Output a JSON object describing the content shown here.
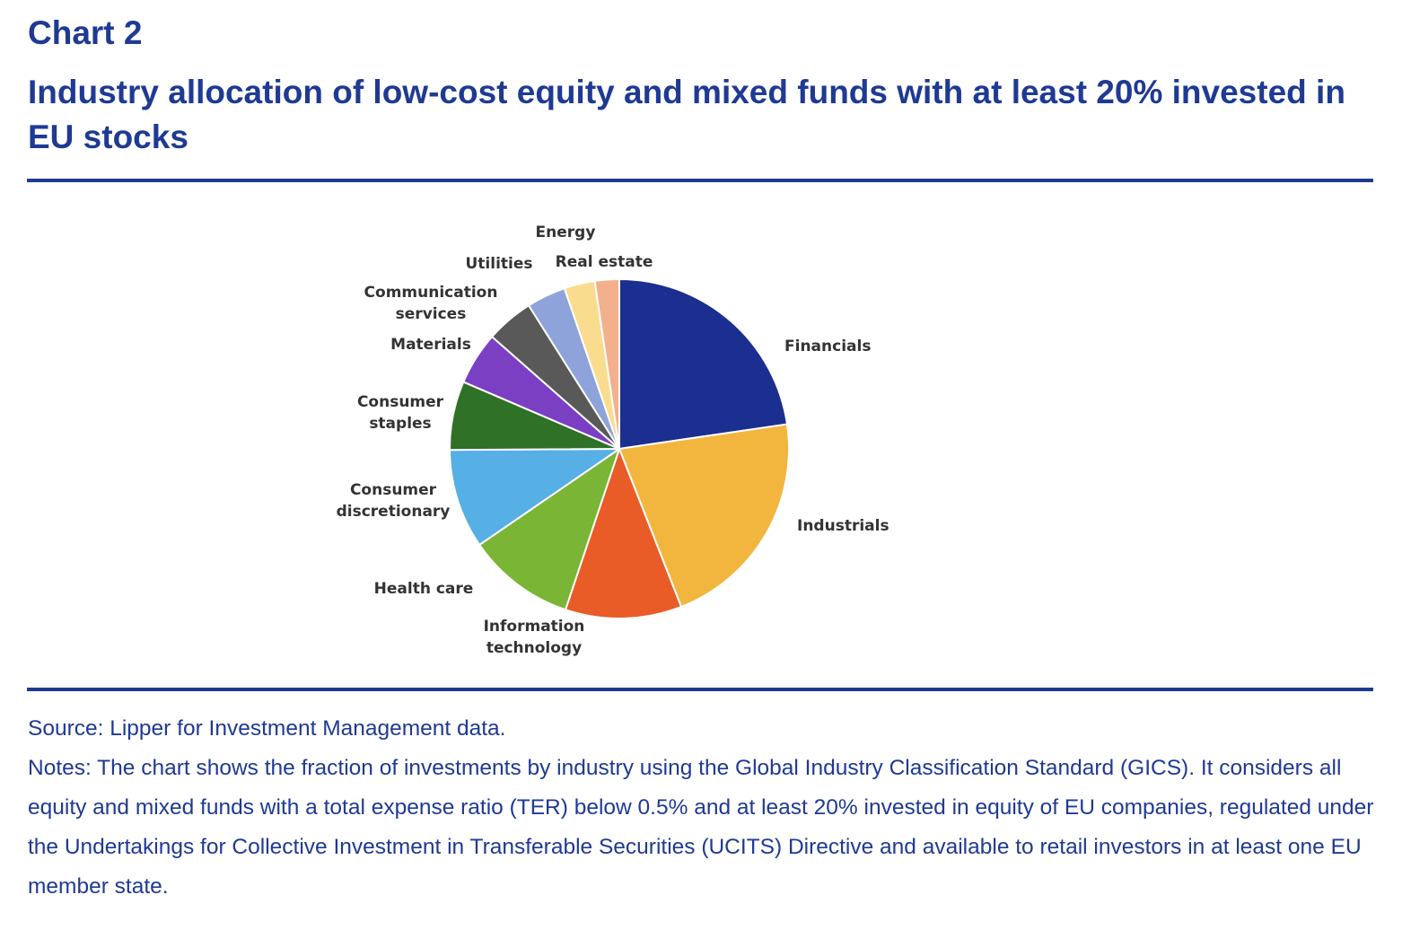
{
  "header": {
    "chart_label": "Chart 2",
    "title": "Industry allocation of low-cost equity and mixed funds with at least 20% invested in EU stocks"
  },
  "chart_data": {
    "type": "pie",
    "title": "Industry allocation of low-cost equity and mixed funds with at least 20% invested in EU stocks",
    "start_angle_deg": 0,
    "direction": "clockwise",
    "slices": [
      {
        "label_lines": [
          "Financials"
        ],
        "value": 22.5,
        "color": "#1a2f8f"
      },
      {
        "label_lines": [
          "Industrials"
        ],
        "value": 21.2,
        "color": "#f2b63f"
      },
      {
        "label_lines": [
          "Information",
          "technology"
        ],
        "value": 11.0,
        "color": "#e95c28"
      },
      {
        "label_lines": [
          "Health care"
        ],
        "value": 10.2,
        "color": "#7ab535"
      },
      {
        "label_lines": [
          "Consumer",
          "discretionary"
        ],
        "value": 9.4,
        "color": "#56afe5"
      },
      {
        "label_lines": [
          "Consumer",
          "staples"
        ],
        "value": 6.5,
        "color": "#2f7126"
      },
      {
        "label_lines": [
          "Materials"
        ],
        "value": 5.0,
        "color": "#7b3fc4"
      },
      {
        "label_lines": [
          "Communication",
          "services"
        ],
        "value": 4.5,
        "color": "#595959"
      },
      {
        "label_lines": [
          "Utilities"
        ],
        "value": 3.7,
        "color": "#8ea3d9"
      },
      {
        "label_lines": [
          "Energy"
        ],
        "value": 2.9,
        "color": "#f9dc8e"
      },
      {
        "label_lines": [
          "Real estate"
        ],
        "value": 2.3,
        "color": "#f3b08c"
      }
    ]
  },
  "footer": {
    "source": "Source: Lipper for Investment Management data.",
    "notes": "Notes: The chart shows the fraction of investments by industry using the Global Industry Classification Standard (GICS). It considers all equity and mixed funds with a total expense ratio (TER) below 0.5% and at least 20% invested in equity of EU companies, regulated under the Undertakings for Collective Investment in Transferable Securities (UCITS) Directive and available to retail investors in at least one EU member state."
  }
}
